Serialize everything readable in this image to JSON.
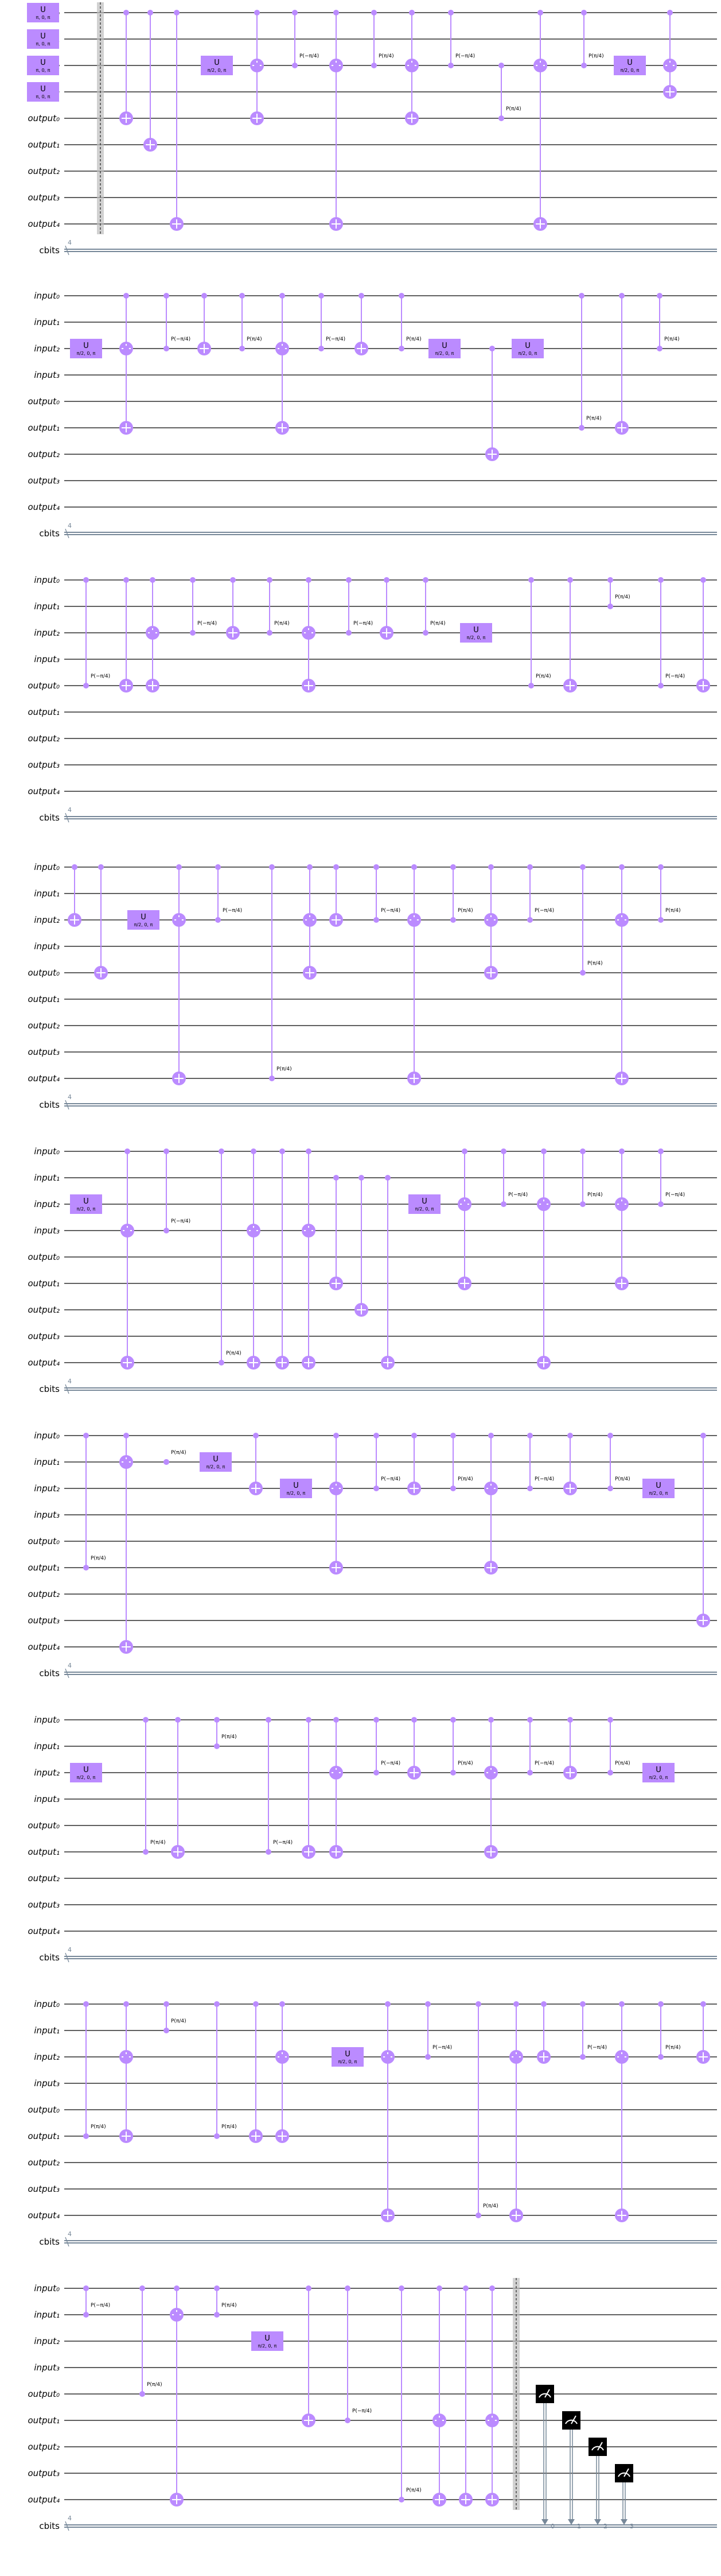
{
  "colors": {
    "wire": "#000000",
    "classical_wire": "#778899",
    "gate_fill": "#bb8bff",
    "gate_text": "#000000",
    "connector": "#bb8bff",
    "barrier": "#bdbdbd",
    "measure_fill": "#000000",
    "measure_symbol": "#ffffff"
  },
  "circuit": {
    "wires": [
      "input₀",
      "input₁",
      "input₂",
      "input₃",
      "output₀",
      "output₁",
      "output₂",
      "output₃",
      "output₄",
      "cbits"
    ],
    "classical_count": "4",
    "measure_labels": [
      "0",
      "1",
      "2",
      "3"
    ],
    "u_label": "U",
    "u_param": "π/2, 0, π",
    "u_param_initial": "π, 0, π",
    "p_label": "P(π/4)",
    "p_label_neg": "P(−π/4)"
  }
}
